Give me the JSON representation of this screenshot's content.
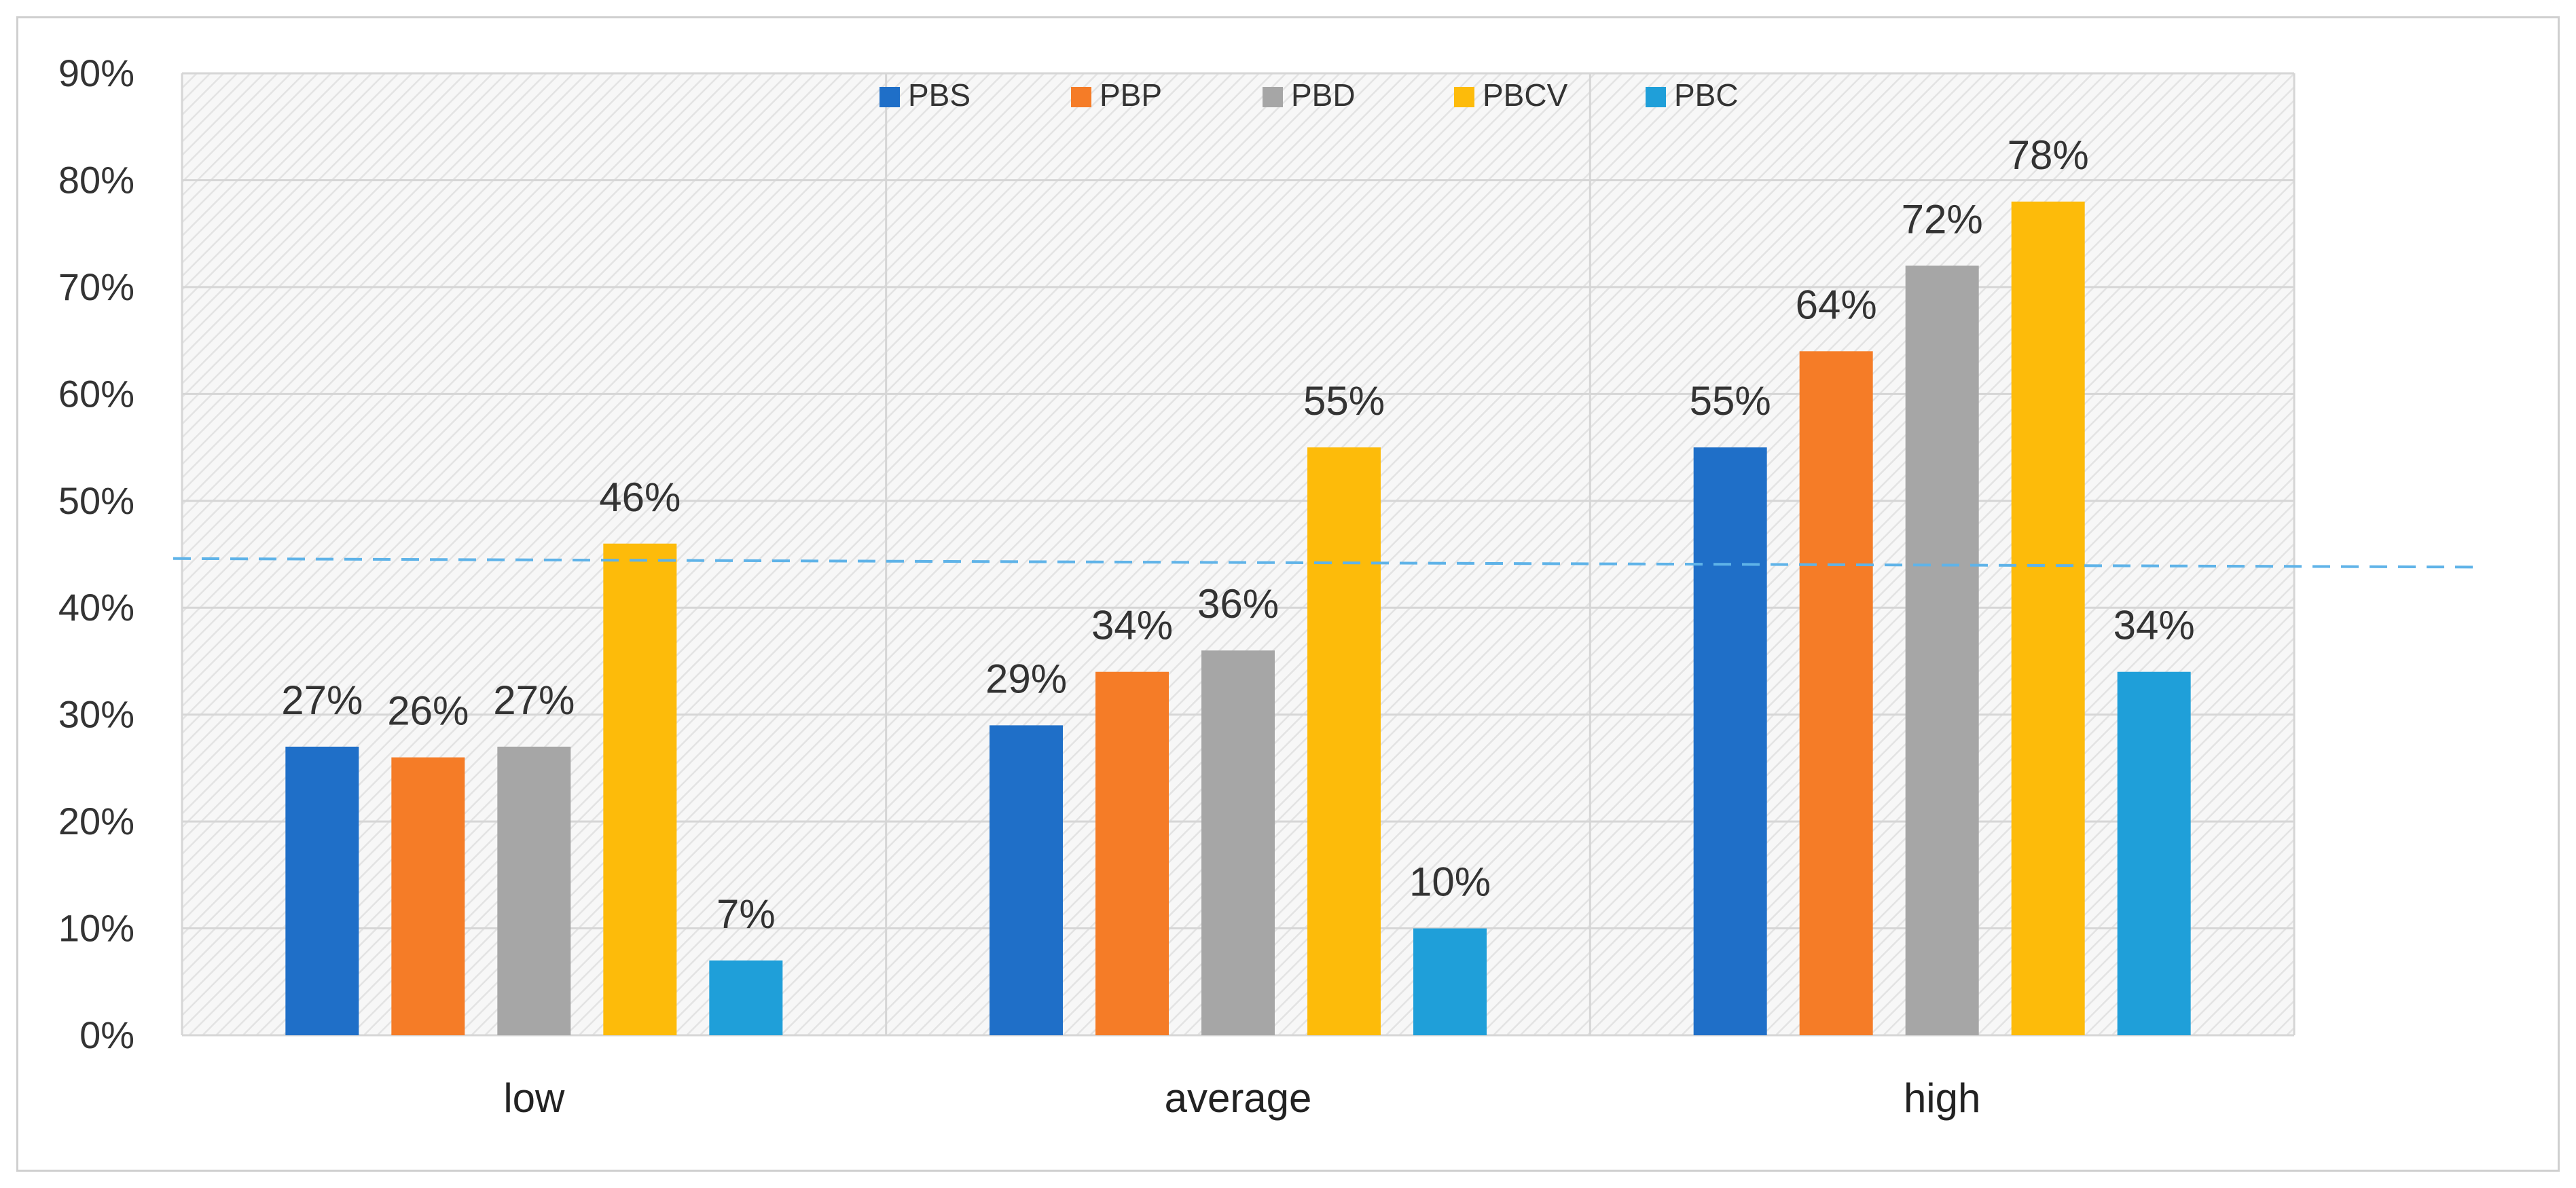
{
  "chart_data": {
    "type": "bar",
    "categories": [
      "low",
      "average",
      "high"
    ],
    "series": [
      {
        "name": "PBS",
        "color": "#1f6fc8",
        "values": [
          27,
          29,
          55
        ],
        "labels": [
          "27%",
          "29%",
          "55%"
        ]
      },
      {
        "name": "PBP",
        "color": "#f57c27",
        "values": [
          26,
          34,
          64
        ],
        "labels": [
          "26%",
          "34%",
          "64%"
        ]
      },
      {
        "name": "PBD",
        "color": "#a6a6a6",
        "values": [
          27,
          36,
          72
        ],
        "labels": [
          "27%",
          "36%",
          "72%"
        ]
      },
      {
        "name": "PBCV",
        "color": "#fdbb0a",
        "values": [
          46,
          55,
          78
        ],
        "labels": [
          "46%",
          "55%",
          "78%"
        ]
      },
      {
        "name": "PBC",
        "color": "#1f9fd9",
        "values": [
          7,
          10,
          34
        ],
        "labels": [
          "7%",
          "10%",
          "34%"
        ]
      }
    ],
    "ylim": [
      0,
      90
    ],
    "yticks": [
      {
        "value": 0,
        "label": "0%"
      },
      {
        "value": 10,
        "label": "10%"
      },
      {
        "value": 20,
        "label": "20%"
      },
      {
        "value": 30,
        "label": "30%"
      },
      {
        "value": 40,
        "label": "40%"
      },
      {
        "value": 50,
        "label": "50%"
      },
      {
        "value": 60,
        "label": "60%"
      },
      {
        "value": 70,
        "label": "70%"
      },
      {
        "value": 80,
        "label": "80%"
      },
      {
        "value": 90,
        "label": "90%"
      }
    ],
    "reference_line": {
      "start_value": 44.6,
      "end_value": 43.8,
      "style": "dashed",
      "color": "#5fb3e8"
    },
    "legend_position": "top-center",
    "grid": true,
    "title": "",
    "xlabel": "",
    "ylabel": ""
  }
}
